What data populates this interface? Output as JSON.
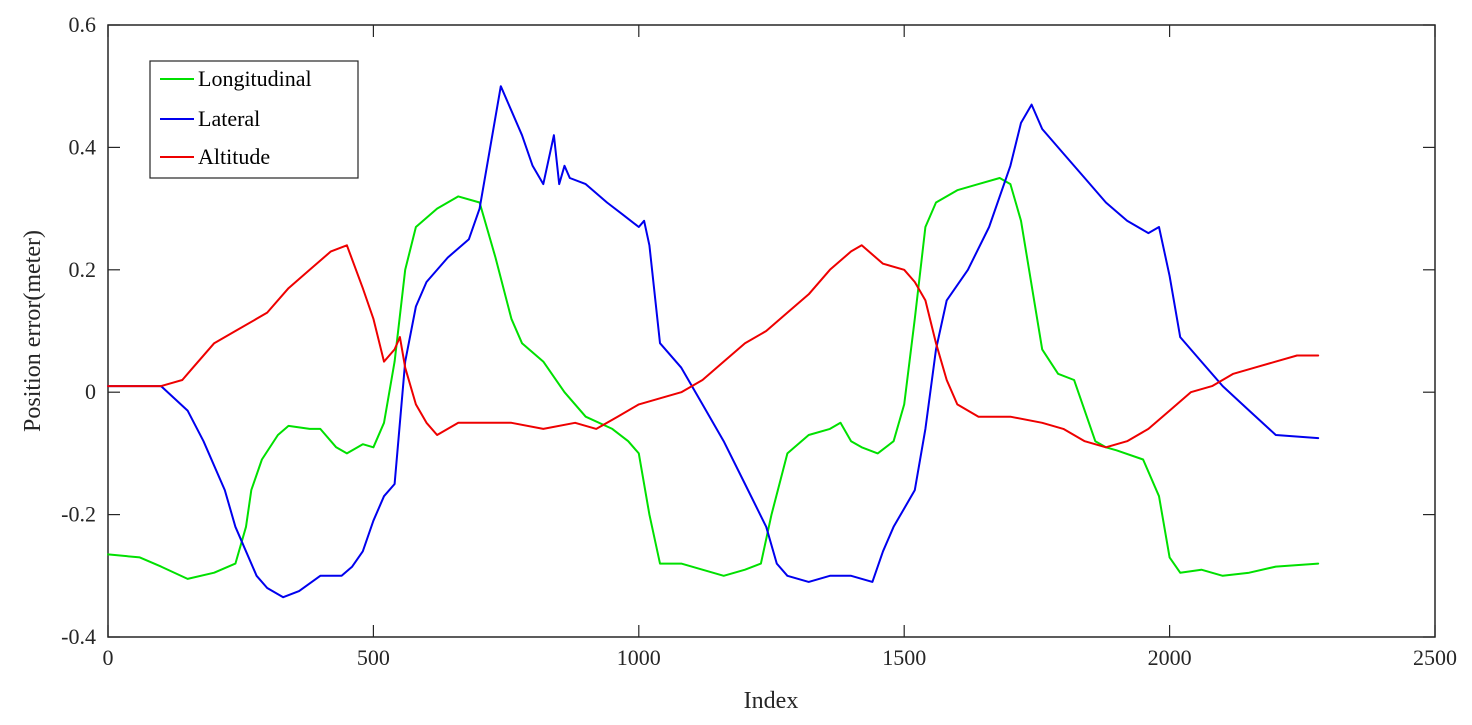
{
  "chart_data": {
    "type": "line",
    "xlabel": "Index",
    "ylabel": "Position error(meter)",
    "xlim": [
      0,
      2500
    ],
    "ylim": [
      -0.4,
      0.6
    ],
    "xticks": [
      0,
      500,
      1000,
      1500,
      2000,
      2500
    ],
    "xtick_labels": [
      "0",
      "500",
      "1000",
      "1500",
      "2000",
      "2500"
    ],
    "yticks": [
      -0.4,
      -0.2,
      0,
      0.2,
      0.4,
      0.6
    ],
    "ytick_labels": [
      "-0.4",
      "-0.2",
      "0",
      "0.2",
      "0.4",
      "0.6"
    ],
    "grid": false,
    "legend_position": "top-left",
    "series": [
      {
        "name": "Longitudinal",
        "color": "#00e000",
        "x": [
          0,
          60,
          100,
          150,
          200,
          240,
          260,
          270,
          290,
          320,
          340,
          380,
          400,
          430,
          450,
          480,
          500,
          520,
          540,
          560,
          580,
          620,
          660,
          700,
          730,
          760,
          780,
          820,
          860,
          900,
          950,
          980,
          1000,
          1020,
          1040,
          1080,
          1120,
          1160,
          1200,
          1230,
          1250,
          1280,
          1320,
          1360,
          1380,
          1400,
          1420,
          1450,
          1480,
          1500,
          1520,
          1540,
          1560,
          1600,
          1640,
          1680,
          1700,
          1720,
          1760,
          1790,
          1820,
          1860,
          1880,
          1900,
          1950,
          1980,
          2000,
          2020,
          2060,
          2100,
          2150,
          2200,
          2280
        ],
        "y": [
          -0.265,
          -0.27,
          -0.285,
          -0.305,
          -0.295,
          -0.28,
          -0.22,
          -0.16,
          -0.11,
          -0.07,
          -0.055,
          -0.06,
          -0.06,
          -0.09,
          -0.1,
          -0.085,
          -0.09,
          -0.05,
          0.05,
          0.2,
          0.27,
          0.3,
          0.32,
          0.31,
          0.22,
          0.12,
          0.08,
          0.05,
          0.0,
          -0.04,
          -0.06,
          -0.08,
          -0.1,
          -0.2,
          -0.28,
          -0.28,
          -0.29,
          -0.3,
          -0.29,
          -0.28,
          -0.2,
          -0.1,
          -0.07,
          -0.06,
          -0.05,
          -0.08,
          -0.09,
          -0.1,
          -0.08,
          -0.02,
          0.12,
          0.27,
          0.31,
          0.33,
          0.34,
          0.35,
          0.34,
          0.28,
          0.07,
          0.03,
          0.02,
          -0.08,
          -0.09,
          -0.095,
          -0.11,
          -0.17,
          -0.27,
          -0.295,
          -0.29,
          -0.3,
          -0.295,
          -0.285,
          -0.28
        ]
      },
      {
        "name": "Lateral",
        "color": "#0000ee",
        "x": [
          0,
          60,
          100,
          150,
          180,
          220,
          240,
          260,
          280,
          300,
          330,
          360,
          400,
          440,
          460,
          480,
          500,
          520,
          540,
          560,
          580,
          600,
          640,
          680,
          700,
          720,
          740,
          760,
          780,
          800,
          820,
          840,
          850,
          860,
          870,
          900,
          940,
          970,
          1000,
          1010,
          1020,
          1040,
          1080,
          1120,
          1160,
          1200,
          1240,
          1260,
          1280,
          1320,
          1360,
          1400,
          1440,
          1460,
          1480,
          1500,
          1520,
          1540,
          1560,
          1580,
          1620,
          1660,
          1700,
          1720,
          1740,
          1760,
          1800,
          1840,
          1880,
          1920,
          1960,
          1980,
          2000,
          2020,
          2060,
          2100,
          2150,
          2200,
          2280
        ],
        "y": [
          0.01,
          0.01,
          0.01,
          -0.03,
          -0.08,
          -0.16,
          -0.22,
          -0.26,
          -0.3,
          -0.32,
          -0.335,
          -0.325,
          -0.3,
          -0.3,
          -0.285,
          -0.26,
          -0.21,
          -0.17,
          -0.15,
          0.05,
          0.14,
          0.18,
          0.22,
          0.25,
          0.3,
          0.4,
          0.5,
          0.46,
          0.42,
          0.37,
          0.34,
          0.42,
          0.34,
          0.37,
          0.35,
          0.34,
          0.31,
          0.29,
          0.27,
          0.28,
          0.24,
          0.08,
          0.04,
          -0.02,
          -0.08,
          -0.15,
          -0.22,
          -0.28,
          -0.3,
          -0.31,
          -0.3,
          -0.3,
          -0.31,
          -0.26,
          -0.22,
          -0.19,
          -0.16,
          -0.06,
          0.07,
          0.15,
          0.2,
          0.27,
          0.37,
          0.44,
          0.47,
          0.43,
          0.39,
          0.35,
          0.31,
          0.28,
          0.26,
          0.27,
          0.19,
          0.09,
          0.05,
          0.01,
          -0.03,
          -0.07,
          -0.075
        ]
      },
      {
        "name": "Altitude",
        "color": "#ee0000",
        "x": [
          0,
          40,
          100,
          140,
          160,
          200,
          240,
          280,
          300,
          340,
          380,
          420,
          450,
          480,
          500,
          520,
          540,
          550,
          560,
          580,
          600,
          620,
          660,
          700,
          760,
          820,
          880,
          920,
          960,
          1000,
          1040,
          1080,
          1120,
          1160,
          1200,
          1240,
          1280,
          1320,
          1360,
          1400,
          1420,
          1460,
          1500,
          1520,
          1540,
          1560,
          1580,
          1600,
          1640,
          1700,
          1760,
          1800,
          1840,
          1880,
          1920,
          1960,
          2000,
          2040,
          2080,
          2120,
          2160,
          2200,
          2240,
          2280
        ],
        "y": [
          0.01,
          0.01,
          0.01,
          0.02,
          0.04,
          0.08,
          0.1,
          0.12,
          0.13,
          0.17,
          0.2,
          0.23,
          0.24,
          0.17,
          0.12,
          0.05,
          0.07,
          0.09,
          0.04,
          -0.02,
          -0.05,
          -0.07,
          -0.05,
          -0.05,
          -0.05,
          -0.06,
          -0.05,
          -0.06,
          -0.04,
          -0.02,
          -0.01,
          0.0,
          0.02,
          0.05,
          0.08,
          0.1,
          0.13,
          0.16,
          0.2,
          0.23,
          0.24,
          0.21,
          0.2,
          0.18,
          0.15,
          0.08,
          0.02,
          -0.02,
          -0.04,
          -0.04,
          -0.05,
          -0.06,
          -0.08,
          -0.09,
          -0.08,
          -0.06,
          -0.03,
          0.0,
          0.01,
          0.03,
          0.04,
          0.05,
          0.06,
          0.06
        ]
      }
    ]
  }
}
